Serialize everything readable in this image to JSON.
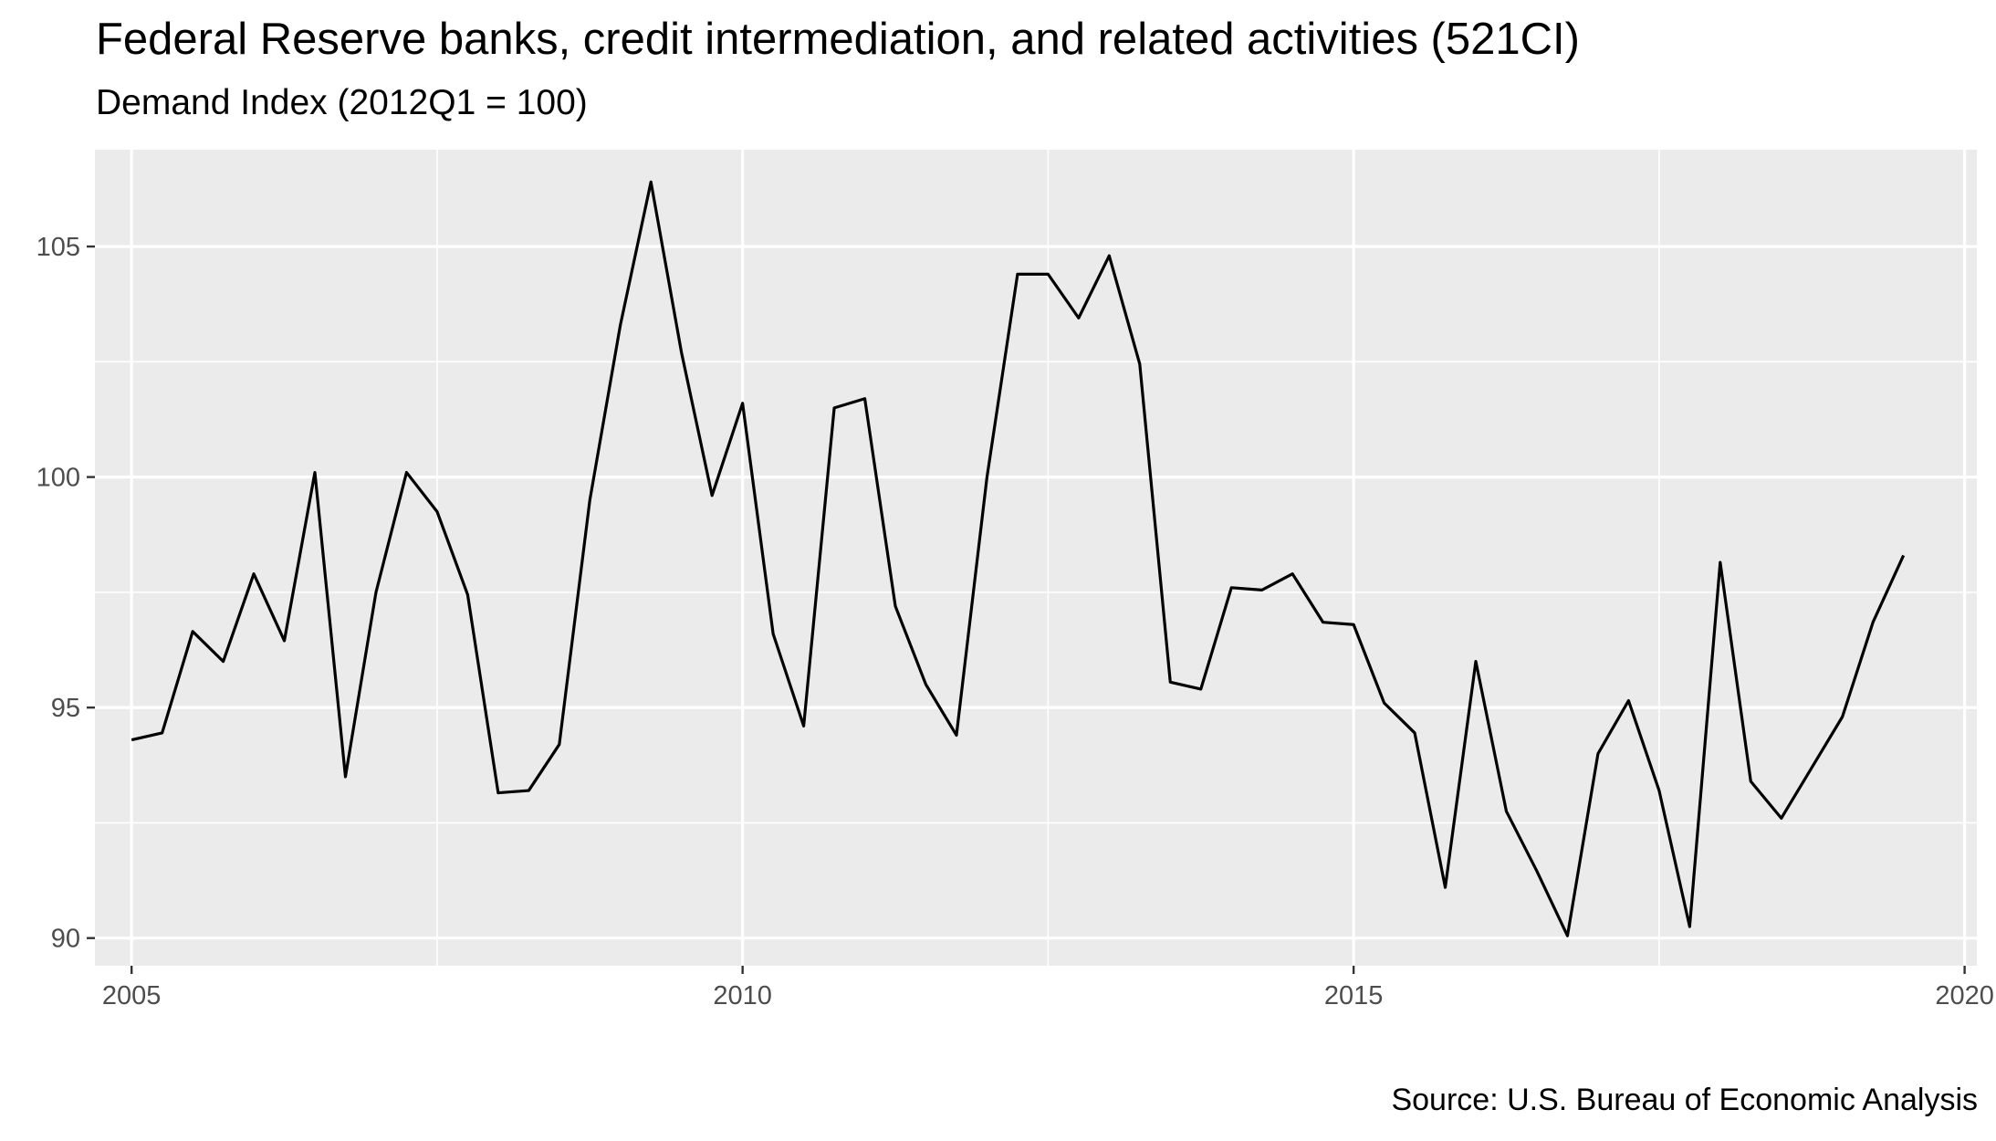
{
  "chart_data": {
    "type": "line",
    "title": "Federal Reserve banks, credit intermediation, and related activities (521CI)",
    "subtitle": "Demand Index (2012Q1 = 100)",
    "caption": "Source: U.S. Bureau of Economic Analysis",
    "xlabel": "",
    "ylabel": "",
    "xlim": [
      2004.7,
      2020.1
    ],
    "ylim": [
      89.4,
      107.1
    ],
    "x_ticks": [
      2005,
      2010,
      2015,
      2020
    ],
    "y_ticks": [
      90,
      95,
      100,
      105
    ],
    "x_minor_ticks": [
      2007.5,
      2012.5,
      2017.5
    ],
    "y_minor_ticks": [
      92.5,
      97.5,
      102.5
    ],
    "grid": true,
    "panel_background": "#ebebeb",
    "grid_color": "#ffffff",
    "line_color": "#000000",
    "series": [
      {
        "x": [
          2005.0,
          2005.25,
          2005.5,
          2005.75,
          2006.0,
          2006.25,
          2006.5,
          2006.75,
          2007.0,
          2007.25,
          2007.5,
          2007.75,
          2008.0,
          2008.25,
          2008.5,
          2008.75,
          2009.0,
          2009.25,
          2009.5,
          2009.75,
          2010.0,
          2010.25,
          2010.5,
          2010.75,
          2011.0,
          2011.25,
          2011.5,
          2011.75,
          2012.0,
          2012.25,
          2012.5,
          2012.75,
          2013.0,
          2013.25,
          2013.5,
          2013.75,
          2014.0,
          2014.25,
          2014.5,
          2014.75,
          2015.0,
          2015.25,
          2015.5,
          2015.75,
          2016.0,
          2016.25,
          2016.5,
          2016.75,
          2017.0,
          2017.25,
          2017.5,
          2017.75,
          2018.0,
          2018.25,
          2018.5,
          2018.75,
          2019.0,
          2019.25,
          2019.5
        ],
        "values": [
          94.3,
          94.45,
          96.65,
          96.0,
          97.9,
          96.45,
          100.1,
          93.5,
          97.5,
          100.1,
          99.25,
          97.45,
          93.15,
          93.2,
          94.2,
          99.5,
          103.3,
          106.4,
          102.7,
          99.6,
          101.6,
          96.6,
          94.6,
          101.5,
          101.7,
          97.2,
          95.5,
          94.4,
          100.0,
          104.4,
          104.4,
          103.45,
          104.8,
          102.45,
          95.55,
          95.4,
          97.6,
          97.55,
          97.9,
          96.85,
          96.8,
          95.1,
          94.45,
          91.1,
          96.0,
          92.75,
          91.45,
          90.05,
          94.0,
          95.15,
          93.2,
          90.25,
          98.15,
          93.4,
          92.6,
          93.7,
          94.8,
          96.85,
          98.3
        ]
      }
    ]
  }
}
